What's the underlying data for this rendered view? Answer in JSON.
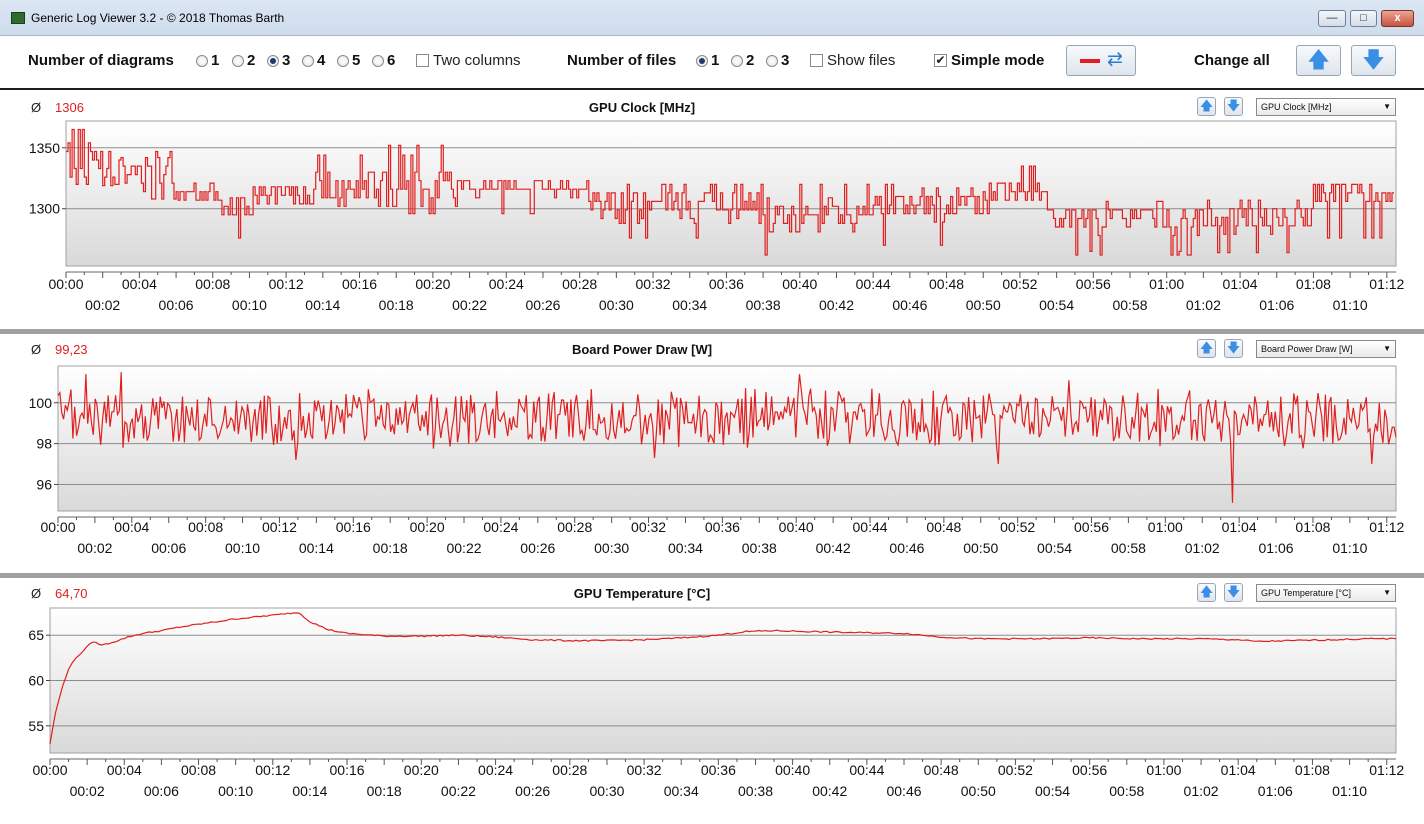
{
  "window": {
    "title": "Generic Log Viewer 3.2 - © 2018 Thomas Barth",
    "min_symbol": "—",
    "max_symbol": "□",
    "close_symbol": "x"
  },
  "toolbar": {
    "num_diagrams_label": "Number of diagrams",
    "diagram_options": [
      "1",
      "2",
      "3",
      "4",
      "5",
      "6"
    ],
    "diagram_selected": "3",
    "two_columns_label": "Two columns",
    "two_columns_checked": false,
    "num_files_label": "Number of files",
    "file_options": [
      "1",
      "2",
      "3"
    ],
    "file_selected": "1",
    "show_files_label": "Show files",
    "show_files_checked": false,
    "simple_mode_label": "Simple mode",
    "simple_mode_checked": true,
    "check_mark": "✔",
    "swap_icon": "⇄",
    "change_all_label": "Change all",
    "up_arrow": "🡅",
    "down_arrow": "🡇",
    "line_color": "#e02020"
  },
  "panels": [
    {
      "avg_symbol": "Ø",
      "avg_value": "1306",
      "title": "GPU Clock [MHz]",
      "selector": "GPU Clock [MHz]"
    },
    {
      "avg_symbol": "Ø",
      "avg_value": "99,23",
      "title": "Board Power Draw [W]",
      "selector": "Board Power Draw [W]"
    },
    {
      "avg_symbol": "Ø",
      "avg_value": "64,70",
      "title": "GPU Temperature [°C]",
      "selector": "GPU Temperature [°C]"
    }
  ],
  "chart_data": [
    {
      "type": "line",
      "title": "GPU Clock [MHz]",
      "x_range_minutes": [
        0,
        72.5
      ],
      "ylim": [
        1253,
        1372
      ],
      "yticks": [
        "1300",
        "1350"
      ],
      "ytick_values": [
        1300,
        1350
      ],
      "xticks_top": [
        "00:00",
        "00:04",
        "00:08",
        "00:12",
        "00:16",
        "00:20",
        "00:24",
        "00:28",
        "00:32",
        "00:36",
        "00:40",
        "00:44",
        "00:48",
        "00:52",
        "00:56",
        "01:00",
        "01:04",
        "01:08",
        "01:12"
      ],
      "xticks_bottom": [
        "00:02",
        "00:06",
        "00:10",
        "00:14",
        "00:18",
        "00:22",
        "00:26",
        "00:30",
        "00:34",
        "00:38",
        "00:42",
        "00:46",
        "00:50",
        "00:54",
        "00:58",
        "01:02",
        "01:06",
        "01:10"
      ],
      "grid": true,
      "series": [
        {
          "color": "#e02020",
          "segments": [
            {
              "t": [
                0,
                3
              ],
              "mean": 1340,
              "spread": 18,
              "spikes": [
                1365,
                1320
              ]
            },
            {
              "t": [
                3,
                6
              ],
              "mean": 1328,
              "spread": 14,
              "spikes": [
                1347,
                1308
              ]
            },
            {
              "t": [
                6,
                8.5
              ],
              "mean": 1314,
              "spread": 8,
              "spikes": []
            },
            {
              "t": [
                8.5,
                10.2
              ],
              "mean": 1302,
              "spread": 10,
              "spikes": [
                1276,
                1316
              ]
            },
            {
              "t": [
                10.2,
                13.5
              ],
              "mean": 1311,
              "spread": 8,
              "spikes": []
            },
            {
              "t": [
                13.5,
                22
              ],
              "mean": 1316,
              "spread": 14,
              "spikes": [
                1352,
                1296,
                1344
              ]
            },
            {
              "t": [
                22,
                28.5
              ],
              "mean": 1316,
              "spread": 6,
              "spikes": [
                1296
              ]
            },
            {
              "t": [
                28.5,
                38
              ],
              "mean": 1306,
              "spread": 14,
              "spikes": [
                1276,
                1288
              ]
            },
            {
              "t": [
                38,
                44
              ],
              "mean": 1295,
              "spread": 16,
              "spikes": [
                1262,
                1320,
                1265
              ]
            },
            {
              "t": [
                44,
                50
              ],
              "mean": 1303,
              "spread": 13,
              "spikes": [
                1270,
                1320
              ]
            },
            {
              "t": [
                50,
                53.5
              ],
              "mean": 1314,
              "spread": 10,
              "spikes": [
                1335,
                1296
              ]
            },
            {
              "t": [
                53.5,
                62
              ],
              "mean": 1292,
              "spread": 12,
              "spikes": [
                1265,
                1262
              ]
            },
            {
              "t": [
                62,
                68
              ],
              "mean": 1293,
              "spread": 11,
              "spikes": [
                1264,
                1307
              ]
            },
            {
              "t": [
                68,
                72.5
              ],
              "mean": 1313,
              "spread": 10,
              "spikes": [
                1276
              ]
            }
          ]
        }
      ]
    },
    {
      "type": "line",
      "title": "Board Power Draw [W]",
      "x_range_minutes": [
        0,
        72.5
      ],
      "ylim": [
        94.7,
        101.8
      ],
      "yticks": [
        "96",
        "98",
        "100"
      ],
      "ytick_values": [
        96,
        98,
        100
      ],
      "xticks_top": [
        "00:00",
        "00:04",
        "00:08",
        "00:12",
        "00:16",
        "00:20",
        "00:24",
        "00:28",
        "00:32",
        "00:36",
        "00:40",
        "00:44",
        "00:48",
        "00:52",
        "00:56",
        "01:00",
        "01:04",
        "01:08",
        "01:12"
      ],
      "xticks_bottom": [
        "00:02",
        "00:06",
        "00:10",
        "00:14",
        "00:18",
        "00:22",
        "00:26",
        "00:30",
        "00:34",
        "00:38",
        "00:42",
        "00:46",
        "00:50",
        "00:54",
        "00:58",
        "01:02",
        "01:06",
        "01:10"
      ],
      "grid": true,
      "series": [
        {
          "color": "#e02020",
          "mean": 99.23,
          "spread": 1.2,
          "spikes": [
            {
              "t": 1.5,
              "v": 101.4
            },
            {
              "t": 3.4,
              "v": 101.5
            },
            {
              "t": 12.9,
              "v": 97.2
            },
            {
              "t": 32.3,
              "v": 97.3
            },
            {
              "t": 40.2,
              "v": 101.4
            },
            {
              "t": 51.0,
              "v": 97.0
            },
            {
              "t": 54.8,
              "v": 101.1
            },
            {
              "t": 63.6,
              "v": 95.1
            },
            {
              "t": 71.2,
              "v": 97.0
            }
          ]
        }
      ]
    },
    {
      "type": "line",
      "title": "GPU Temperature [°C]",
      "x_range_minutes": [
        0,
        72.5
      ],
      "ylim": [
        52,
        68
      ],
      "yticks": [
        "55",
        "60",
        "65"
      ],
      "ytick_values": [
        55,
        60,
        65
      ],
      "xticks_top": [
        "00:00",
        "00:04",
        "00:08",
        "00:12",
        "00:16",
        "00:20",
        "00:24",
        "00:28",
        "00:32",
        "00:36",
        "00:40",
        "00:44",
        "00:48",
        "00:52",
        "00:56",
        "01:00",
        "01:04",
        "01:08",
        "01:12"
      ],
      "xticks_bottom": [
        "00:02",
        "00:06",
        "00:10",
        "00:14",
        "00:18",
        "00:22",
        "00:26",
        "00:30",
        "00:34",
        "00:38",
        "00:42",
        "00:46",
        "00:50",
        "00:54",
        "00:58",
        "01:02",
        "01:06",
        "01:10"
      ],
      "grid": true,
      "series": [
        {
          "color": "#e02020",
          "points": [
            [
              0.0,
              53.0
            ],
            [
              0.3,
              56.5
            ],
            [
              0.7,
              59.5
            ],
            [
              1.0,
              61.3
            ],
            [
              1.4,
              62.5
            ],
            [
              1.8,
              63.3
            ],
            [
              2.3,
              64.3
            ],
            [
              2.8,
              63.9
            ],
            [
              3.5,
              64.3
            ],
            [
              4.2,
              64.8
            ],
            [
              5.0,
              65.2
            ],
            [
              6.0,
              65.5
            ],
            [
              7.0,
              65.9
            ],
            [
              8.0,
              66.2
            ],
            [
              9.0,
              66.5
            ],
            [
              10.0,
              66.8
            ],
            [
              11.0,
              67.0
            ],
            [
              12.0,
              67.2
            ],
            [
              12.8,
              67.4
            ],
            [
              13.4,
              67.5
            ],
            [
              14.0,
              66.5
            ],
            [
              15.0,
              65.6
            ],
            [
              16.0,
              65.2
            ],
            [
              18.0,
              64.9
            ],
            [
              20.0,
              64.9
            ],
            [
              22.0,
              65.0
            ],
            [
              24.0,
              64.8
            ],
            [
              26.0,
              64.5
            ],
            [
              28.0,
              64.4
            ],
            [
              30.0,
              64.4
            ],
            [
              32.0,
              64.5
            ],
            [
              34.0,
              64.7
            ],
            [
              36.0,
              65.0
            ],
            [
              37.5,
              65.4
            ],
            [
              39.0,
              65.5
            ],
            [
              41.0,
              65.4
            ],
            [
              43.0,
              65.3
            ],
            [
              46.0,
              65.2
            ],
            [
              48.0,
              64.8
            ],
            [
              50.0,
              64.6
            ],
            [
              53.0,
              64.6
            ],
            [
              56.0,
              64.7
            ],
            [
              59.0,
              64.6
            ],
            [
              62.0,
              64.6
            ],
            [
              64.0,
              64.5
            ],
            [
              65.0,
              64.3
            ],
            [
              67.0,
              64.4
            ],
            [
              69.0,
              64.5
            ],
            [
              71.0,
              64.6
            ],
            [
              72.5,
              64.6
            ]
          ]
        }
      ]
    }
  ]
}
